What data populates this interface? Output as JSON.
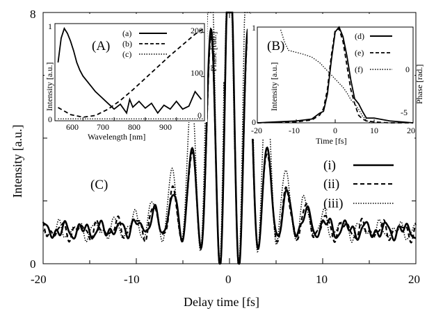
{
  "chart_data": [
    {
      "id": "main",
      "type": "line",
      "panel_label": "(C)",
      "xlabel": "Delay time [fs]",
      "ylabel": "Intensity [a.u.]",
      "xlim": [
        -20,
        20
      ],
      "ylim": [
        0,
        8
      ],
      "xticks": [
        "-20",
        "-10",
        "0",
        "10",
        "20"
      ],
      "yticks": [
        "0",
        "8"
      ],
      "series": [
        {
          "name": "(i)",
          "style": "solid"
        },
        {
          "name": "(ii)",
          "style": "dashed"
        },
        {
          "name": "(iii)",
          "style": "dotted"
        }
      ],
      "envelope": {
        "baseline": 1.05,
        "peak": 8.0,
        "period_fs": 2.05
      },
      "legend_position": "right"
    },
    {
      "id": "inset_A",
      "type": "line",
      "panel_label": "(A)",
      "xlabel": "Wavelength [nm]",
      "ylabel": "Intensity [a.u.]",
      "y2label": "Phase [rad.]",
      "xlim": [
        510,
        990
      ],
      "ylim": [
        0,
        1
      ],
      "y2lim": [
        0,
        220
      ],
      "xticks": [
        "600",
        "700",
        "800",
        "900"
      ],
      "yticks": [
        "0",
        "1"
      ],
      "y2ticks": [
        "0",
        "100",
        "200"
      ],
      "series": [
        {
          "name": "(a)",
          "style": "solid",
          "x": [
            520,
            530,
            540,
            550,
            560,
            570,
            580,
            590,
            600,
            620,
            640,
            660,
            680,
            700,
            720,
            740,
            750,
            760,
            780,
            800,
            820,
            840,
            860,
            880,
            900,
            920,
            940,
            960,
            980
          ],
          "y": [
            0.6,
            0.85,
            0.95,
            0.9,
            0.82,
            0.72,
            0.6,
            0.52,
            0.46,
            0.38,
            0.3,
            0.24,
            0.18,
            0.12,
            0.17,
            0.08,
            0.22,
            0.14,
            0.2,
            0.13,
            0.18,
            0.08,
            0.16,
            0.12,
            0.2,
            0.12,
            0.15,
            0.3,
            0.22
          ]
        },
        {
          "name": "(b)",
          "style": "dashed",
          "x": [
            520,
            560,
            600,
            640,
            680,
            720,
            760,
            800,
            840,
            880,
            920,
            960,
            990
          ],
          "y": [
            30,
            14,
            8,
            12,
            26,
            46,
            70,
            96,
            122,
            148,
            172,
            196,
            210
          ]
        },
        {
          "name": "(c)",
          "style": "dotted",
          "x": [
            520,
            990
          ],
          "y": [
            0.02,
            0.02
          ]
        }
      ]
    },
    {
      "id": "inset_B",
      "type": "line",
      "panel_label": "(B)",
      "xlabel": "Time [fs]",
      "ylabel": "Intensity [a.u.]",
      "y2label": "Phase [rad.]",
      "xlim": [
        -20,
        20
      ],
      "ylim": [
        0,
        1
      ],
      "y2lim": [
        -5,
        2
      ],
      "xticks": [
        "-20",
        "-10",
        "0",
        "10",
        "20"
      ],
      "yticks": [
        "0",
        "1"
      ],
      "y2ticks": [
        "-5",
        "0"
      ],
      "series": [
        {
          "name": "(d)",
          "style": "solid",
          "x": [
            -20,
            -10,
            -6,
            -4,
            -3,
            -2,
            -1,
            0,
            1,
            2,
            3,
            4,
            5,
            6,
            7,
            8,
            10,
            14,
            20
          ],
          "y": [
            0,
            0.02,
            0.04,
            0.1,
            0.12,
            0.3,
            0.65,
            0.95,
            1.0,
            0.9,
            0.7,
            0.45,
            0.25,
            0.2,
            0.12,
            0.05,
            0.05,
            0.02,
            0
          ]
        },
        {
          "name": "(e)",
          "style": "dashed",
          "x": [
            -20,
            -10,
            -6,
            -4,
            -3,
            -2,
            -1,
            0,
            1,
            2,
            3,
            4,
            5,
            6,
            7,
            8,
            10,
            14,
            20
          ],
          "y": [
            0,
            0.01,
            0.03,
            0.08,
            0.15,
            0.35,
            0.7,
            0.97,
            0.98,
            0.85,
            0.6,
            0.35,
            0.2,
            0.08,
            0.04,
            0.02,
            0.01,
            0,
            0
          ]
        },
        {
          "name": "(f)",
          "style": "dotted",
          "x": [
            -14,
            -13,
            -12,
            -10,
            -8,
            -6,
            -4,
            -2,
            0,
            2,
            3,
            4,
            5,
            6,
            7,
            8,
            9,
            10
          ],
          "y": [
            1.8,
            0.9,
            0.3,
            0.15,
            0.0,
            -0.2,
            -0.6,
            -1.2,
            -1.8,
            -2.4,
            -2.8,
            -3.3,
            -3.6,
            -4.0,
            -4.5,
            -4.8,
            -5.0,
            -5.0
          ]
        }
      ]
    }
  ]
}
